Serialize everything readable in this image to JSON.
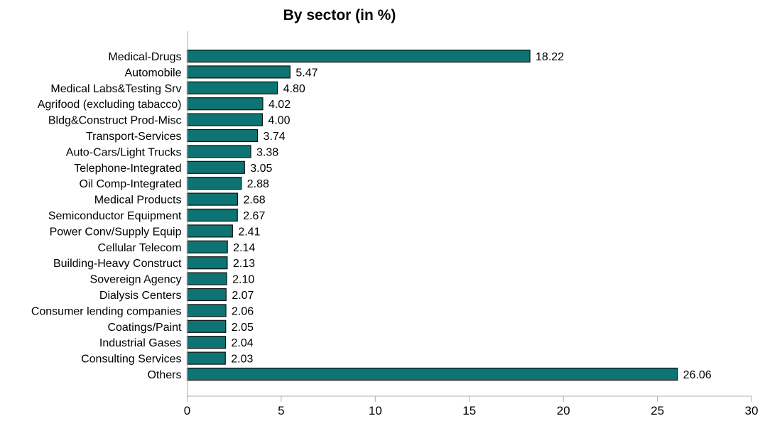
{
  "chart_data": {
    "type": "bar",
    "orientation": "horizontal",
    "title": "By sector (in %)",
    "xlabel": "",
    "ylabel": "",
    "xlim": [
      0,
      30
    ],
    "xticks": [
      0,
      5,
      10,
      15,
      20,
      25,
      30
    ],
    "grid": false,
    "legend": "none",
    "bar_color": "#0e7373",
    "categories": [
      "Medical-Drugs",
      "Automobile",
      "Medical Labs&Testing Srv",
      "Agrifood (excluding tabacco)",
      "Bldg&Construct Prod-Misc",
      "Transport-Services",
      "Auto-Cars/Light Trucks",
      "Telephone-Integrated",
      "Oil Comp-Integrated",
      "Medical Products",
      "Semiconductor Equipment",
      "Power Conv/Supply Equip",
      "Cellular Telecom",
      "Building-Heavy Construct",
      "Sovereign Agency",
      "Dialysis Centers",
      "Consumer lending companies",
      "Coatings/Paint",
      "Industrial Gases",
      "Consulting Services",
      "Others"
    ],
    "values": [
      18.22,
      5.47,
      4.8,
      4.02,
      4.0,
      3.74,
      3.38,
      3.05,
      2.88,
      2.68,
      2.67,
      2.41,
      2.14,
      2.13,
      2.1,
      2.07,
      2.06,
      2.05,
      2.04,
      2.03,
      26.06
    ],
    "value_labels": [
      "18.22",
      "5.47",
      "4.80",
      "4.02",
      "4.00",
      "3.74",
      "3.38",
      "3.05",
      "2.88",
      "2.68",
      "2.67",
      "2.41",
      "2.14",
      "2.13",
      "2.10",
      "2.07",
      "2.06",
      "2.05",
      "2.04",
      "2.03",
      "26.06"
    ]
  }
}
